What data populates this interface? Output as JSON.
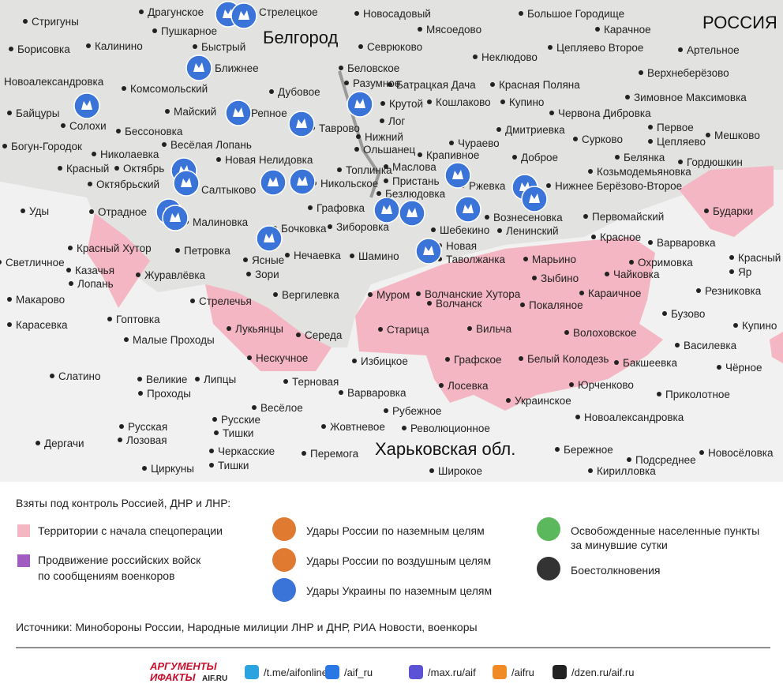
{
  "map": {
    "country_label": "РОССИЯ",
    "city_label": "Белгород",
    "region_label": "Харьковская обл.",
    "places": [
      "Драгунское",
      "Стрелецкое",
      "Пушкарное",
      "Новосадовый",
      "Большое Городище",
      "Мясоедово",
      "Карачное",
      "Стригуны",
      "Борисовка",
      "Калинино",
      "Быстрый",
      "Севрюково",
      "Неклюдово",
      "Цепляево Второе",
      "Артельное",
      "Новоалександровка",
      "Ближнее",
      "Беловское",
      "Верхнеберёзово",
      "Комсомольский",
      "Разумное",
      "Батрацкая Дача",
      "Красная Поляна",
      "Дубовое",
      "Байцуры",
      "Солохи",
      "Майский",
      "Репное",
      "Крутой",
      "Кошлаково",
      "Купино",
      "Зимовное Максимовка",
      "Червона Дибровка",
      "Лог",
      "Нижний",
      "Бессоновка",
      "Таврово",
      "Дмитриевка",
      "Первое",
      "Цепляево",
      "Мешково",
      "Сурково",
      "Ольшанец",
      "Чураево",
      "Богун-Городок",
      "Весёлая Лопань",
      "Николаевка",
      "Новая Нелидовка",
      "Крапивное",
      "Доброе",
      "Белянка",
      "Гордюшкин",
      "Красный",
      "Октябрь",
      "Топлинка",
      "Маслова",
      "Пристань",
      "Козьмодемьяновка",
      "Октябрьский",
      "Никольское",
      "Безлюдовка",
      "Ржевка",
      "Нижнее Берёзово-Второе",
      "Салтыково",
      "Уды",
      "Графовка",
      "Отрадное",
      "Бударки",
      "Вознесеновка",
      "Первомайский",
      "Малиновка",
      "Бочковка",
      "Зиборовка",
      "Шебекино",
      "Ленинский",
      "Красный Хутор",
      "Петровка",
      "Красное",
      "Варваровка",
      "Нечаевка",
      "Шамино",
      "Новая",
      "Таволжанка",
      "Ясные",
      "Зори",
      "Светличное",
      "Казачья",
      "Лопань",
      "Марьино",
      "Охримовка",
      "Красный",
      "Яр",
      "Журавлёвка",
      "Чайковка",
      "Зыбино",
      "Резниковка",
      "Вергилевка",
      "Муром",
      "Волчанские Хутора",
      "Караичное",
      "Макарово",
      "Стрелечья",
      "Волчанск",
      "Покаляное",
      "Бузово",
      "Гоптовка",
      "Карасевка",
      "Купино",
      "Лукьянцы",
      "Старица",
      "Вильча",
      "Волоховское",
      "Середа",
      "Малые Проходы",
      "Василевка",
      "Нескучное",
      "Избицкое",
      "Графское",
      "Белый Колодезь",
      "Бакшеевка",
      "Чёрное",
      "Слатино",
      "Великие",
      "Проходы",
      "Липцы",
      "Терновая",
      "Лосевка",
      "Юрченково",
      "Варваровка",
      "Приколотное",
      "Украинское",
      "Весёлое",
      "Рубежное",
      "Новоалександровка",
      "Русские",
      "Тишки",
      "Русская",
      "Лозовая",
      "Жовтневое",
      "Революционное",
      "Дергачи",
      "Бережное",
      "Черкасские",
      "Тишки",
      "Перемога",
      "Новосёловка",
      "Подсреднее",
      "Циркуны",
      "Широкое",
      "Кирилловка"
    ]
  },
  "legend": {
    "title": "Взяты под контроль Россией, ДНР и ЛНР:",
    "territory": "Территории с начала спецоперации",
    "advance": [
      "Продвижение российских войск",
      "по сообщениям военкоров"
    ],
    "ground_strikes_ru": "Удары России по наземным целям",
    "air_strikes_ru": "Удары России по воздушным целям",
    "ground_strikes_ua": "Удары Украины по наземным целям",
    "liberated": [
      "Освобожденные населенные пункты",
      "за минувшие сутки"
    ],
    "clashes": "Боестолкновения"
  },
  "sources": "Источники: Минобороны России, Народные милиции ЛНР и ДНР, РИА Новости, военкоры",
  "footer": {
    "logo": [
      "АРГУМЕНТЫ",
      "ИФАКТЫ",
      "AIF.RU"
    ],
    "links": [
      "/t.me/aifonline",
      "/aif_ru",
      "/max.ru/aif",
      "/aifru",
      "/dzen.ru/aif.ru"
    ]
  }
}
